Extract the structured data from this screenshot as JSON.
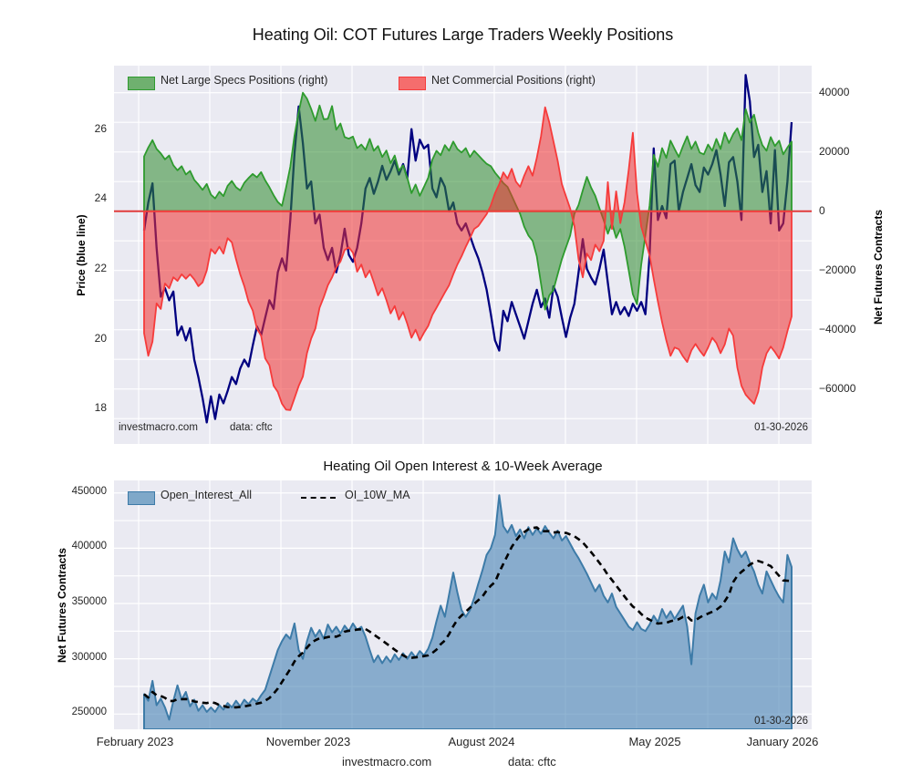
{
  "page": {
    "footer": {
      "watermark": "investmacro.com",
      "source": "data: cftc"
    },
    "theme": {
      "panel_bg": "#eaeaf2",
      "grid_color": "#ffffff",
      "fig_bg": "#ffffff"
    }
  },
  "chart_data": [
    {
      "type": "line+area",
      "title": "Heating Oil: COT Futures Large Traders Weekly Positions",
      "left_axis": {
        "label": "Price (blue line)",
        "ticks": [
          26,
          24,
          22,
          20,
          18
        ],
        "range": [
          16.98,
          27.83
        ]
      },
      "right_axis": {
        "label": "Net Futures Contracts",
        "ticks": [
          40000,
          20000,
          0,
          -20000,
          -40000,
          -60000
        ],
        "range": [
          -78500,
          49100
        ],
        "grid_step": 10000
      },
      "legend": [
        {
          "label": "Net Large Specs Positions (right)",
          "color": "#2e9b2e"
        },
        {
          "label": "Net Commercial Positions (right)",
          "color": "#f63b3b"
        }
      ],
      "annotations": {
        "watermark": "investmacro.com",
        "source": "data: cftc",
        "date": "01-30-2026"
      },
      "zero_line_color": "#e03131",
      "series": [
        {
          "name": "Price",
          "axis": "left",
          "type": "line",
          "color": "#000080",
          "width": 2.3,
          "values": [
            23.1,
            23.9,
            24.45,
            22.6,
            21.2,
            21.45,
            21.1,
            21.35,
            20.1,
            20.35,
            19.95,
            20.3,
            19.4,
            18.9,
            18.3,
            17.6,
            18.35,
            17.7,
            18.4,
            18.15,
            18.5,
            18.9,
            18.7,
            19.15,
            19.4,
            19.2,
            19.8,
            20.35,
            20.1,
            20.6,
            21.1,
            20.85,
            21.9,
            22.3,
            21.95,
            23.4,
            25.3,
            26.65,
            25.6,
            24.3,
            24.5,
            23.3,
            23.55,
            22.6,
            22.25,
            22.6,
            21.9,
            22.4,
            23.15,
            22.4,
            22.2,
            22.6,
            23.3,
            24.3,
            24.6,
            24.15,
            24.5,
            24.95,
            24.55,
            24.8,
            25.1,
            24.7,
            25.0,
            24.6,
            26.0,
            25.1,
            25.7,
            25.45,
            25.55,
            24.3,
            24.05,
            24.6,
            24.35,
            23.65,
            23.9,
            23.3,
            23.1,
            23.3,
            22.95,
            22.6,
            22.3,
            21.9,
            21.4,
            20.7,
            19.95,
            19.66,
            20.8,
            20.5,
            21.05,
            20.7,
            20.35,
            20.0,
            20.5,
            21.0,
            21.4,
            20.9,
            21.15,
            20.6,
            21.5,
            21.2,
            20.6,
            20.05,
            20.6,
            21.0,
            21.9,
            22.85,
            22.0,
            21.75,
            21.55,
            22.0,
            22.55,
            21.6,
            20.7,
            21.05,
            20.7,
            20.9,
            20.65,
            21.0,
            20.8,
            21.05,
            20.7,
            22.4,
            25.45,
            23.4,
            23.8,
            23.45,
            25.0,
            25.1,
            23.65,
            24.2,
            24.6,
            25.0,
            24.4,
            24.2,
            24.9,
            24.7,
            25.0,
            25.4,
            24.7,
            23.8,
            25.05,
            25.2,
            24.5,
            23.4,
            27.55,
            26.8,
            25.2,
            25.55,
            24.2,
            24.8,
            23.3,
            25.4,
            23.1,
            23.3,
            24.5,
            26.2
          ]
        },
        {
          "name": "Net Large Specs Positions",
          "axis": "right",
          "type": "area",
          "line_color": "#2e9b2e",
          "fill_color": "#2e8b2e",
          "fill_opacity": 0.55,
          "values": [
            18500,
            21500,
            24000,
            21000,
            19500,
            17500,
            18800,
            15500,
            13800,
            15200,
            12400,
            13600,
            10600,
            9000,
            7200,
            9200,
            5600,
            4300,
            6600,
            5100,
            8600,
            10200,
            8100,
            7000,
            9600,
            11200,
            12600,
            11400,
            13200,
            10400,
            8100,
            5400,
            3100,
            1800,
            8000,
            15000,
            25500,
            33500,
            40000,
            38000,
            34500,
            30500,
            35700,
            31000,
            31200,
            35500,
            27500,
            29600,
            25000,
            24500,
            25200,
            21300,
            22500,
            20700,
            24400,
            20400,
            22000,
            18300,
            20500,
            16200,
            18800,
            13700,
            15500,
            11300,
            6100,
            9000,
            5200,
            8200,
            11300,
            17400,
            20400,
            18900,
            22300,
            20400,
            23500,
            21000,
            19800,
            21300,
            18300,
            20400,
            18900,
            17400,
            16000,
            15200,
            13000,
            11300,
            9500,
            8200,
            5200,
            2100,
            -900,
            -5200,
            -8200,
            -10000,
            -15200,
            -24400,
            -33200,
            -28400,
            -26500,
            -21300,
            -16200,
            -12200,
            -8200,
            -900,
            2100,
            7000,
            11600,
            8000,
            5200,
            1000,
            -3000,
            -7600,
            -4000,
            -9000,
            -6000,
            -12000,
            -20000,
            -28000,
            -31400,
            -18000,
            -8000,
            2000,
            19000,
            15000,
            21300,
            18000,
            23800,
            21000,
            18300,
            22000,
            25300,
            21000,
            23500,
            19800,
            19200,
            22500,
            20400,
            24400,
            21000,
            26500,
            23000,
            26000,
            28000,
            24000,
            34500,
            29900,
            32600,
            26500,
            22300,
            20400,
            25000,
            22000,
            23800,
            19200,
            21500,
            23500
          ]
        },
        {
          "name": "Net Commercial Positions",
          "axis": "right",
          "type": "area",
          "line_color": "#f63b3b",
          "fill_color": "#f03030",
          "fill_opacity": 0.55,
          "values": [
            -41200,
            -48800,
            -44000,
            -31100,
            -33000,
            -24400,
            -26000,
            -22300,
            -23500,
            -21300,
            -22800,
            -21300,
            -23000,
            -25300,
            -24000,
            -20000,
            -12800,
            -14300,
            -12000,
            -14300,
            -9100,
            -10500,
            -16200,
            -21300,
            -25300,
            -30500,
            -33500,
            -39600,
            -42000,
            -49700,
            -52000,
            -58900,
            -61000,
            -65000,
            -67000,
            -67100,
            -63100,
            -59000,
            -55800,
            -47900,
            -43000,
            -39600,
            -32600,
            -29000,
            -25000,
            -22300,
            -19000,
            -17000,
            -13100,
            -12200,
            -14000,
            -20400,
            -18000,
            -22300,
            -20000,
            -24000,
            -28400,
            -26000,
            -30000,
            -34500,
            -32000,
            -36600,
            -34000,
            -38000,
            -42700,
            -40000,
            -43600,
            -41000,
            -38700,
            -35000,
            -32600,
            -30000,
            -27400,
            -25000,
            -21300,
            -18000,
            -15200,
            -12000,
            -9100,
            -6000,
            -5000,
            -3000,
            -1000,
            2000,
            6100,
            9100,
            13100,
            11000,
            14300,
            10000,
            8200,
            12000,
            15200,
            12000,
            18000,
            25300,
            35100,
            30000,
            23500,
            17000,
            9100,
            5000,
            900,
            -5000,
            -16200,
            -22300,
            -14300,
            -16500,
            -11300,
            -13500,
            -10000,
            9800,
            -6000,
            6700,
            -4000,
            3000,
            14000,
            26500,
            6100,
            -5200,
            -10000,
            -15000,
            -22900,
            -30500,
            -37500,
            -43600,
            -48800,
            -46000,
            -46600,
            -49000,
            -50900,
            -47000,
            -44800,
            -47000,
            -48800,
            -46000,
            -42700,
            -44500,
            -47900,
            -45000,
            -39600,
            -42000,
            -52800,
            -58900,
            -61900,
            -63500,
            -65000,
            -61000,
            -52800,
            -48000,
            -45700,
            -47500,
            -49700,
            -46000,
            -40500,
            -35500
          ]
        }
      ]
    },
    {
      "type": "area+line",
      "title": "Heating Oil Open Interest & 10-Week Average",
      "left_axis": {
        "label": "Net Futures Contracts",
        "ticks": [
          450000,
          400000,
          350000,
          300000,
          250000
        ],
        "range": [
          236200,
          461300
        ],
        "grid_step": 25000
      },
      "x_ticks": [
        {
          "label": "February 2023",
          "t": -2.2
        },
        {
          "label": "November 2023",
          "t": 39.3
        },
        {
          "label": "August 2024",
          "t": 80.8
        },
        {
          "label": "May 2025",
          "t": 122.3
        },
        {
          "label": "January 2026",
          "t": 152.8
        }
      ],
      "legend": [
        {
          "label": "Open_Interest_All",
          "color": "#4682b4"
        },
        {
          "label": "OI_10W_MA",
          "color": "#000000"
        }
      ],
      "annotations": {
        "date": "01-30-2026"
      },
      "series": [
        {
          "name": "Open_Interest_All",
          "type": "area",
          "line_color": "#3d7ba8",
          "fill_color": "#4682b4",
          "fill_opacity": 0.6,
          "values": [
            268000,
            262000,
            280000,
            258000,
            264000,
            256000,
            245000,
            262000,
            276000,
            263000,
            270000,
            257000,
            263000,
            253000,
            258000,
            252000,
            256000,
            252000,
            258000,
            254000,
            260000,
            256000,
            262000,
            257000,
            263000,
            259000,
            264000,
            261000,
            267000,
            272000,
            284000,
            296000,
            308000,
            316000,
            322000,
            318000,
            332000,
            308000,
            300000,
            316000,
            328000,
            320000,
            326000,
            318000,
            331000,
            324000,
            329000,
            323000,
            330000,
            325000,
            332000,
            326000,
            329000,
            320000,
            308000,
            297000,
            303000,
            296000,
            302000,
            297000,
            304000,
            299000,
            305000,
            300000,
            306000,
            301000,
            307000,
            303000,
            309000,
            319000,
            334000,
            348000,
            338000,
            358000,
            378000,
            360000,
            344000,
            338000,
            344000,
            355000,
            368000,
            380000,
            394000,
            400000,
            412000,
            448000,
            420000,
            414000,
            421000,
            411000,
            417000,
            409000,
            419000,
            412000,
            418000,
            413000,
            420000,
            414000,
            409000,
            416000,
            407000,
            411000,
            404000,
            397000,
            391000,
            384000,
            377000,
            369000,
            361000,
            367000,
            357000,
            351000,
            359000,
            347000,
            341000,
            335000,
            329000,
            326000,
            333000,
            327000,
            325000,
            331000,
            339000,
            333000,
            345000,
            337000,
            343000,
            336000,
            342000,
            348000,
            329000,
            295000,
            341000,
            357000,
            367000,
            351000,
            359000,
            354000,
            371000,
            397000,
            387000,
            409000,
            399000,
            392000,
            397000,
            387000,
            379000,
            367000,
            359000,
            379000,
            371000,
            363000,
            356000,
            351000,
            394000,
            383000
          ]
        },
        {
          "name": "OI_10W_MA",
          "type": "ma_line",
          "color": "#000000",
          "dash": [
            7,
            5
          ],
          "window": 10
        }
      ]
    }
  ]
}
